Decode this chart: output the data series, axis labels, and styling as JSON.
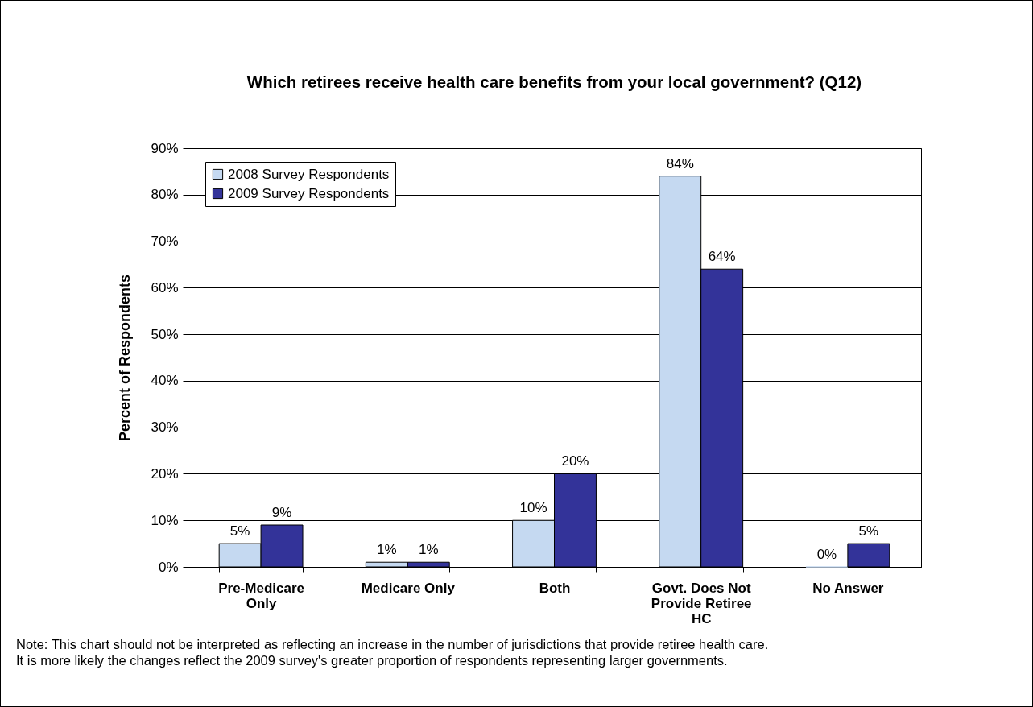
{
  "chart_data": {
    "type": "bar",
    "title": "Which retirees receive health care benefits from your local government? (Q12)",
    "ylabel": "Percent of Respondents",
    "categories": [
      "Pre-Medicare Only",
      "Medicare Only",
      "Both",
      "Govt. Does Not Provide Retiree HC",
      "No Answer"
    ],
    "series": [
      {
        "name": "2008 Survey Respondents",
        "color": "#c5d9f1",
        "values": [
          5,
          1,
          10,
          84,
          0
        ],
        "value_labels": [
          "5%",
          "1%",
          "10%",
          "84%",
          "0%"
        ]
      },
      {
        "name": "2009 Survey Respondents",
        "color": "#333399",
        "values": [
          9,
          1,
          20,
          64,
          5
        ],
        "value_labels": [
          "9%",
          "1%",
          "20%",
          "64%",
          "5%"
        ]
      }
    ],
    "ylim": [
      0,
      90
    ],
    "yticks": [
      {
        "value": 0,
        "label": "0%"
      },
      {
        "value": 10,
        "label": "10%"
      },
      {
        "value": 20,
        "label": "20%"
      },
      {
        "value": 30,
        "label": "30%"
      },
      {
        "value": 40,
        "label": "40%"
      },
      {
        "value": 50,
        "label": "50%"
      },
      {
        "value": 60,
        "label": "60%"
      },
      {
        "value": 70,
        "label": "70%"
      },
      {
        "value": 80,
        "label": "80%"
      },
      {
        "value": 90,
        "label": "90%"
      }
    ],
    "grid": "y",
    "legend": "top left",
    "annotations": [
      "Note: This chart should not be interpreted as reflecting an increase in the number of jurisdictions that provide retiree health care.",
      "It is more likely the changes reflect the 2009 survey's greater proportion of respondents representing larger governments."
    ]
  }
}
